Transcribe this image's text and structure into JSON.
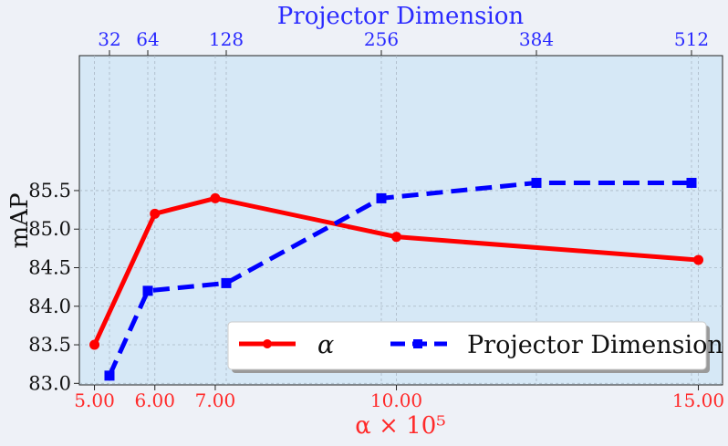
{
  "chart_data": {
    "type": "line",
    "ylabel": "mAP",
    "xlabel_bottom": "α × 10⁵",
    "xlabel_top": "Projector Dimension",
    "ylim": [
      82.98,
      87.25
    ],
    "yticks": [
      "83.0",
      "83.5",
      "84.0",
      "84.5",
      "85.0",
      "85.5"
    ],
    "bottom_axis": {
      "xlim": [
        4.75,
        15.4
      ],
      "tick_values": [
        5,
        6,
        7,
        10,
        15
      ],
      "tick_labels": [
        "5.00",
        "6.00",
        "7.00",
        "10.00",
        "15.00"
      ]
    },
    "top_axis": {
      "tick_labels": [
        "32",
        "64",
        "128",
        "256",
        "384",
        "512"
      ]
    },
    "grid": true,
    "legend_position": "lower-right",
    "series": [
      {
        "name": "α",
        "axis": "bottom",
        "color": "#ff0000",
        "linestyle": "solid",
        "marker": "circle",
        "x": [
          5,
          6,
          7,
          10,
          15
        ],
        "y": [
          83.5,
          85.2,
          85.4,
          84.9,
          84.6
        ]
      },
      {
        "name": "Projector Dimension",
        "axis": "top",
        "color": "#0000ff",
        "linestyle": "dashed",
        "marker": "square",
        "x": [
          "32",
          "64",
          "128",
          "256",
          "384",
          "512"
        ],
        "y": [
          83.1,
          84.2,
          84.3,
          85.4,
          85.6,
          85.6
        ]
      }
    ]
  },
  "colors": {
    "plot_background": "#d6e8f6",
    "page_background": "#eef1f7",
    "alpha_series": "#ff0000",
    "projector_series": "#0000ff"
  }
}
